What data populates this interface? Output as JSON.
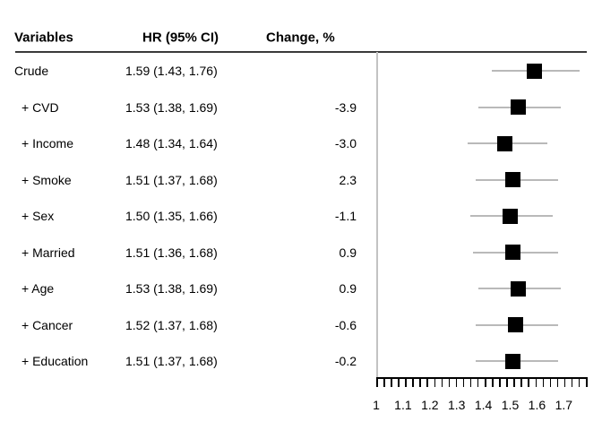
{
  "figure": {
    "kind": "forest-plot",
    "background": "#ffffff"
  },
  "table": {
    "headers": {
      "variables": "Variables",
      "hr": "HR (95% CI)",
      "change": "Change, %"
    }
  },
  "chart_data": {
    "type": "scatter",
    "subtype": "forest",
    "title": "",
    "xlabel": "",
    "ylabel": "",
    "legend": "none",
    "grid": false,
    "axis": {
      "min": 1.0,
      "max": 1.783,
      "reference_value": 1.0,
      "minor_tick_count": 30,
      "tick_values": [
        1,
        1.1,
        1.2,
        1.3,
        1.4,
        1.5,
        1.6,
        1.7
      ],
      "tick_labels": [
        "1",
        "1.1",
        "1.2",
        "1.3",
        "1.4",
        "1.5",
        "1.6",
        "1.7"
      ]
    },
    "rows": [
      {
        "variable": "Crude",
        "hr_ci": "1.59 (1.43, 1.76)",
        "change": "",
        "hr": 1.59,
        "lo": 1.43,
        "hi": 1.76
      },
      {
        "variable": "+ CVD",
        "hr_ci": "1.53 (1.38, 1.69)",
        "change": "-3.9",
        "hr": 1.53,
        "lo": 1.38,
        "hi": 1.69
      },
      {
        "variable": "+ Income",
        "hr_ci": "1.48 (1.34, 1.64)",
        "change": "-3.0",
        "hr": 1.48,
        "lo": 1.34,
        "hi": 1.64
      },
      {
        "variable": "+ Smoke",
        "hr_ci": "1.51 (1.37, 1.68)",
        "change": "2.3",
        "hr": 1.51,
        "lo": 1.37,
        "hi": 1.68
      },
      {
        "variable": "+ Sex",
        "hr_ci": "1.50 (1.35, 1.66)",
        "change": "-1.1",
        "hr": 1.5,
        "lo": 1.35,
        "hi": 1.66
      },
      {
        "variable": "+ Married",
        "hr_ci": "1.51 (1.36, 1.68)",
        "change": "0.9",
        "hr": 1.51,
        "lo": 1.36,
        "hi": 1.68
      },
      {
        "variable": "+ Age",
        "hr_ci": "1.53 (1.38, 1.69)",
        "change": "0.9",
        "hr": 1.53,
        "lo": 1.38,
        "hi": 1.69
      },
      {
        "variable": "+ Cancer",
        "hr_ci": "1.52 (1.37, 1.68)",
        "change": "-0.6",
        "hr": 1.52,
        "lo": 1.37,
        "hi": 1.68
      },
      {
        "variable": "+ Education",
        "hr_ci": "1.51 (1.37, 1.68)",
        "change": "-0.2",
        "hr": 1.51,
        "lo": 1.37,
        "hi": 1.68
      }
    ],
    "colors": {
      "marker": "#000000",
      "ci_line": "#b9b9b9",
      "reference_line": "#c3c3c3",
      "header_rule": "#3a3a3a",
      "axis": "#000000",
      "text": "#000000"
    }
  }
}
